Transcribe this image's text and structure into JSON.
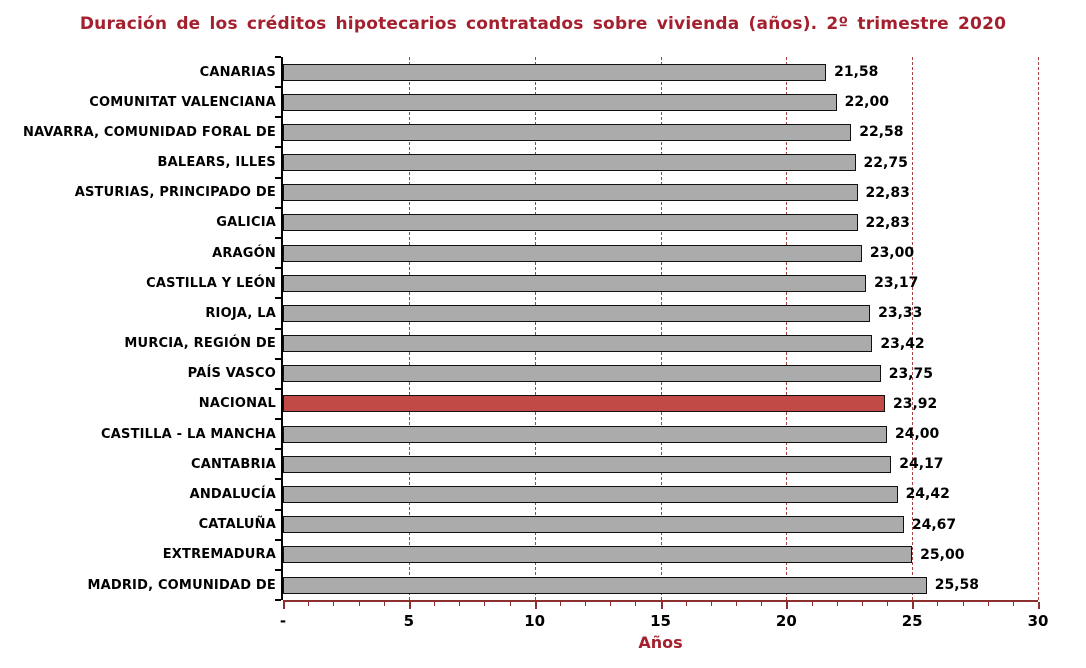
{
  "chart_data": {
    "type": "bar",
    "orientation": "horizontal",
    "title": "Duración de los créditos hipotecarios contratados sobre vivienda (años). 2º trimestre 2020",
    "xlabel": "Años",
    "xlim": [
      0,
      30
    ],
    "grid": {
      "show": true,
      "interval": 5,
      "style": "dashed"
    },
    "x_major_ticks": [
      {
        "value": 0,
        "label": "-"
      },
      {
        "value": 5,
        "label": "5"
      },
      {
        "value": 10,
        "label": "10"
      },
      {
        "value": 15,
        "label": "15"
      },
      {
        "value": 20,
        "label": "20"
      },
      {
        "value": 25,
        "label": "25"
      },
      {
        "value": 30,
        "label": "30"
      }
    ],
    "x_minor_tick_step": 1,
    "categories": [
      "CANARIAS",
      "COMUNITAT VALENCIANA",
      "NAVARRA, COMUNIDAD FORAL DE",
      "BALEARS, ILLES",
      "ASTURIAS, PRINCIPADO DE",
      "GALICIA",
      "ARAGÓN",
      "CASTILLA Y LEÓN",
      "RIOJA, LA",
      "MURCIA, REGIÓN DE",
      "PAÍS VASCO",
      "NACIONAL",
      "CASTILLA - LA MANCHA",
      "CANTABRIA",
      "ANDALUCÍA",
      "CATALUÑA",
      "EXTREMADURA",
      "MADRID, COMUNIDAD DE"
    ],
    "values": [
      21.58,
      22.0,
      22.58,
      22.75,
      22.83,
      22.83,
      23.0,
      23.17,
      23.33,
      23.42,
      23.75,
      23.92,
      24.0,
      24.17,
      24.42,
      24.67,
      25.0,
      25.58
    ],
    "value_labels": [
      "21,58",
      "22,00",
      "22,58",
      "22,75",
      "22,83",
      "22,83",
      "23,00",
      "23,17",
      "23,33",
      "23,42",
      "23,75",
      "23,92",
      "24,00",
      "24,17",
      "24,42",
      "24,67",
      "25,00",
      "25,58"
    ],
    "highlight_category": "NACIONAL",
    "highlight_index": 11,
    "colors": {
      "title": "#A5202F",
      "axis_title": "#A5202F",
      "bar_fill": "#ABABAB",
      "bar_highlight_fill": "#C14A46",
      "bar_border": "#111111",
      "gridline": "#A94444",
      "x_axis_line": "#8E2F2F",
      "x_tick": "#8E2F2F",
      "tick_label": "#000000",
      "category_label": "#000000",
      "value_label": "#000000",
      "background": "#FFFFFF"
    }
  }
}
